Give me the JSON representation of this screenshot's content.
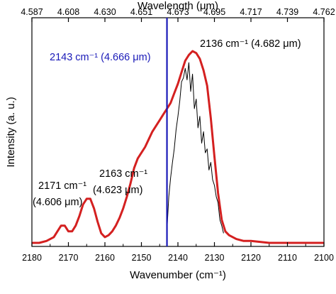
{
  "chart_data": {
    "type": "line",
    "xlabel": "Wavenumber (cm⁻¹)",
    "x2label": "Wavelength (μm)",
    "ylabel": "Intensity (a. u.)",
    "xlim": [
      2180,
      2100
    ],
    "x_ticks": [
      "2180",
      "2170",
      "2160",
      "2150",
      "2140",
      "2130",
      "2120",
      "2110",
      "2100"
    ],
    "x2_ticks": [
      "4.587",
      "4.608",
      "4.630",
      "4.651",
      "4.673",
      "4.695",
      "4.717",
      "4.739",
      "4.762"
    ],
    "colors": {
      "broad_series": "#d42020",
      "narrow_series": "#000000",
      "marker_line": "#1a1ab8"
    },
    "marker_line_x": 2143,
    "series": [
      {
        "style": "broad-red",
        "x": [
          2180,
          2178,
          2176,
          2174,
          2173,
          2172,
          2171,
          2170,
          2169,
          2168,
          2167,
          2166,
          2165,
          2164,
          2163,
          2162,
          2161,
          2160,
          2159,
          2158,
          2157,
          2156,
          2155,
          2154,
          2153,
          2152,
          2151,
          2150,
          2149,
          2148,
          2147,
          2146,
          2145,
          2144,
          2143,
          2142,
          2141,
          2140,
          2139,
          2138,
          2137,
          2136,
          2135,
          2134,
          2133,
          2132,
          2131,
          2130,
          2129,
          2128,
          2127,
          2126,
          2124,
          2122,
          2120,
          2115,
          2110,
          2105,
          2100
        ],
        "y": [
          0.0,
          0.0,
          0.01,
          0.03,
          0.06,
          0.09,
          0.09,
          0.06,
          0.06,
          0.09,
          0.14,
          0.2,
          0.23,
          0.23,
          0.18,
          0.11,
          0.05,
          0.03,
          0.04,
          0.06,
          0.09,
          0.13,
          0.18,
          0.24,
          0.31,
          0.39,
          0.44,
          0.47,
          0.5,
          0.54,
          0.58,
          0.61,
          0.64,
          0.67,
          0.7,
          0.73,
          0.78,
          0.83,
          0.89,
          0.95,
          0.98,
          1.0,
          0.99,
          0.96,
          0.9,
          0.82,
          0.65,
          0.45,
          0.26,
          0.12,
          0.06,
          0.04,
          0.02,
          0.01,
          0.01,
          0.0,
          0.0,
          0.0,
          0.0
        ]
      },
      {
        "style": "narrow-black",
        "x": [
          2143,
          2142.5,
          2142,
          2141.5,
          2141,
          2140.5,
          2140,
          2139.5,
          2139,
          2138.5,
          2138,
          2137.5,
          2137,
          2136.5,
          2136,
          2135.5,
          2135,
          2134.5,
          2134,
          2133.5,
          2133,
          2132.5,
          2132,
          2131.5,
          2131,
          2130.5,
          2130,
          2129.5,
          2129,
          2128.5,
          2128,
          2127.5
        ],
        "y": [
          0.07,
          0.24,
          0.34,
          0.42,
          0.49,
          0.59,
          0.66,
          0.74,
          0.84,
          0.86,
          0.91,
          0.85,
          0.94,
          0.79,
          0.88,
          0.7,
          0.75,
          0.6,
          0.66,
          0.52,
          0.58,
          0.47,
          0.49,
          0.38,
          0.42,
          0.33,
          0.3,
          0.24,
          0.21,
          0.12,
          0.09,
          0.05
        ]
      }
    ],
    "annotations": [
      {
        "text": "2143 cm⁻¹ (4.666 μm)",
        "color": "blue"
      },
      {
        "text": "2136 cm⁻¹ (4.682 μm)",
        "color": "black"
      },
      {
        "text": "2163 cm⁻¹",
        "color": "black"
      },
      {
        "text": "(4.623 μm)",
        "color": "black"
      },
      {
        "text": "2171 cm⁻¹",
        "color": "black"
      },
      {
        "text": "(4.606 μm)",
        "color": "black"
      }
    ]
  }
}
